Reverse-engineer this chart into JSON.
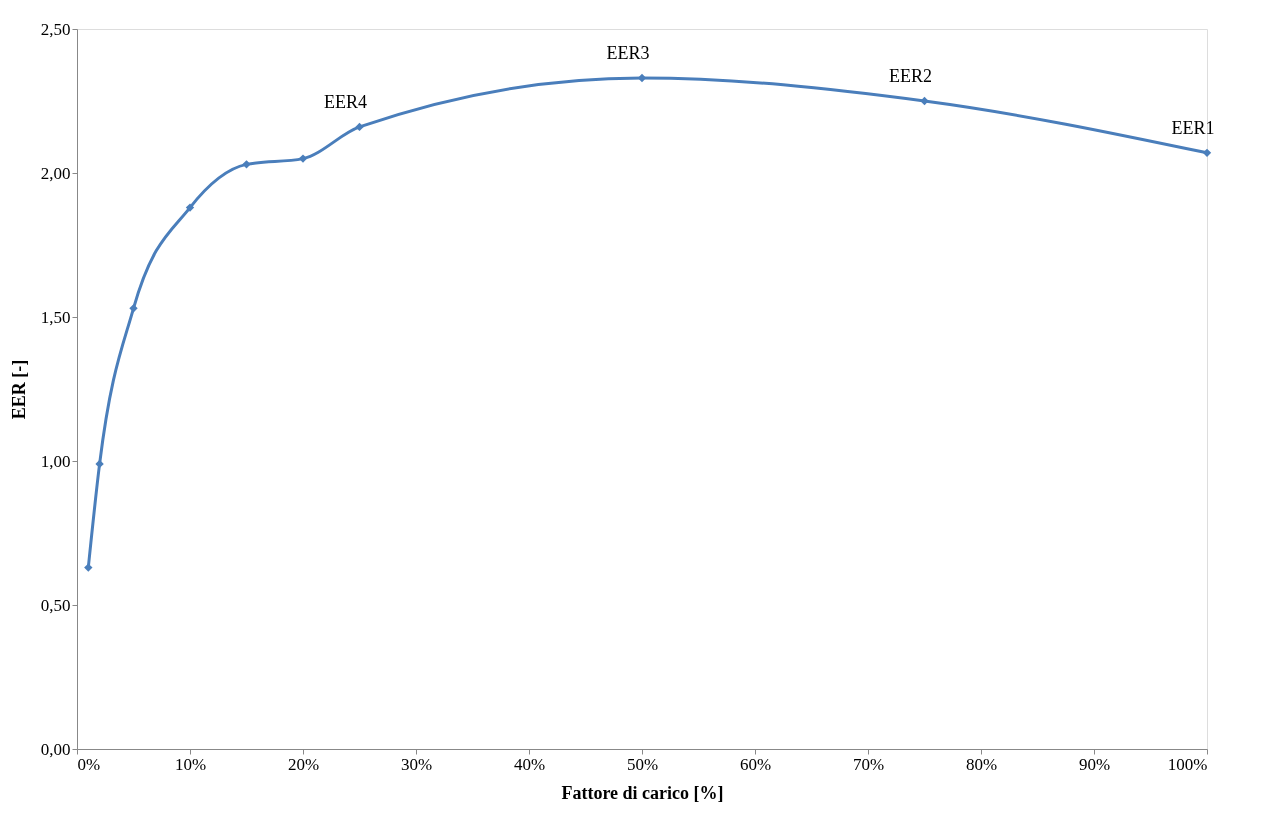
{
  "chart_data": {
    "type": "line",
    "xlabel": "Fattore di carico [%]",
    "ylabel": "EER [-]",
    "x": [
      1,
      2,
      5,
      10,
      15,
      20,
      25,
      50,
      75,
      100
    ],
    "series": [
      {
        "color": "#4a7ebb",
        "values": [
          0.63,
          0.99,
          1.53,
          1.88,
          2.03,
          2.05,
          2.16,
          2.33,
          2.25,
          2.07
        ]
      }
    ],
    "xlim": [
      0,
      100
    ],
    "xticks": [
      {
        "value": 0,
        "label": "0%"
      },
      {
        "value": 10,
        "label": "10%"
      },
      {
        "value": 20,
        "label": "20%"
      },
      {
        "value": 30,
        "label": "30%"
      },
      {
        "value": 40,
        "label": "40%"
      },
      {
        "value": 50,
        "label": "50%"
      },
      {
        "value": 60,
        "label": "60%"
      },
      {
        "value": 70,
        "label": "70%"
      },
      {
        "value": 80,
        "label": "80%"
      },
      {
        "value": 90,
        "label": "90%"
      },
      {
        "value": 100,
        "label": "100%"
      }
    ],
    "ylim": [
      0,
      2.5
    ],
    "yticks": [
      {
        "value": 0,
        "label": "0,00"
      },
      {
        "value": 0.5,
        "label": "0,50"
      },
      {
        "value": 1,
        "label": "1,00"
      },
      {
        "value": 1.5,
        "label": "1,50"
      },
      {
        "value": 2,
        "label": "2,00"
      },
      {
        "value": 2.5,
        "label": "2,50"
      }
    ],
    "annotations": [
      {
        "text": "EER4",
        "x": 25,
        "y": 2.16
      },
      {
        "text": "EER3",
        "x": 50,
        "y": 2.33
      },
      {
        "text": "EER2",
        "x": 75,
        "y": 2.25
      },
      {
        "text": "EER1",
        "x": 100,
        "y": 2.07
      }
    ],
    "marker": "diamond",
    "line_style": "solid",
    "grid": false
  }
}
